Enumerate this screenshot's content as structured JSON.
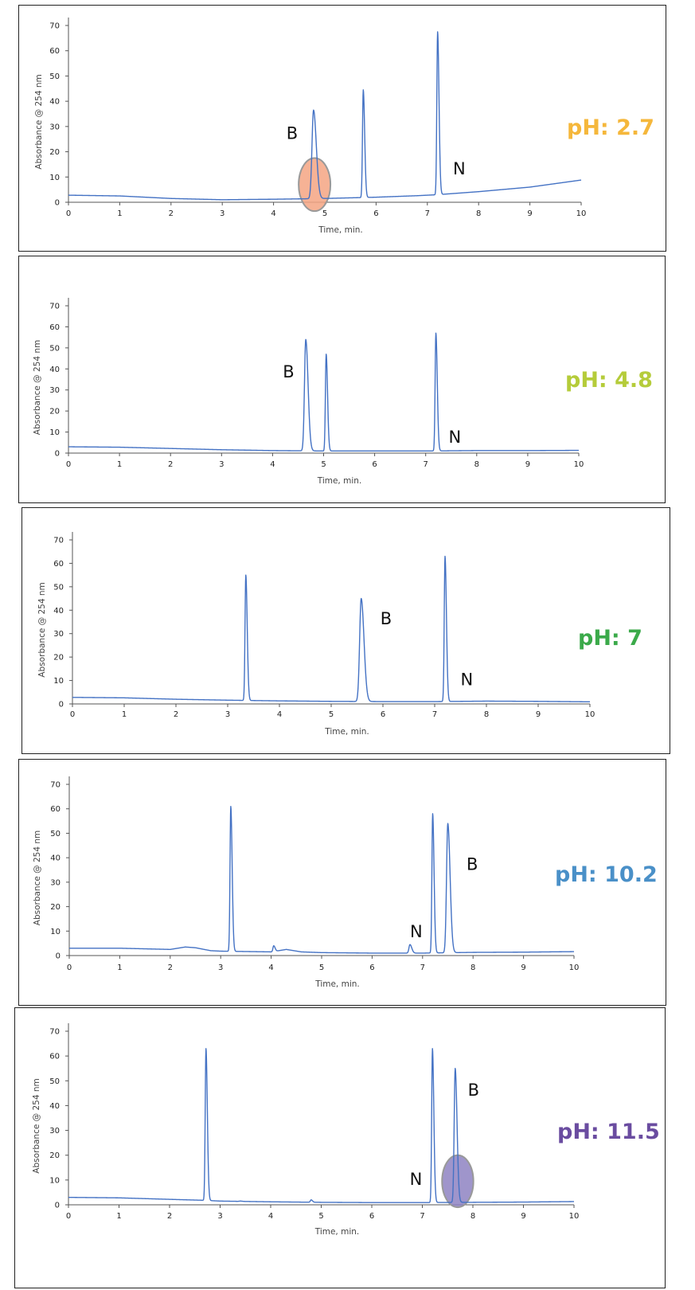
{
  "chart_data": [
    {
      "type": "line",
      "phLabel": "pH: 2.7",
      "phColor": "#F5B73B",
      "xlabel": "Time, min.",
      "ylabel": "Absorbance @ 254 nm",
      "xlim": [
        0,
        10
      ],
      "ylim": [
        0,
        70
      ],
      "xticks": [
        0,
        1,
        2,
        3,
        4,
        5,
        6,
        7,
        8,
        9,
        10
      ],
      "yticks": [
        0,
        10,
        20,
        30,
        40,
        50,
        60,
        70
      ],
      "lineColor": "#4472C4",
      "baseline": [
        [
          0,
          2.8
        ],
        [
          1,
          2.5
        ],
        [
          2,
          1.5
        ],
        [
          3,
          1.0
        ],
        [
          4,
          1.2
        ],
        [
          4.7,
          1.4
        ],
        [
          5,
          1.5
        ],
        [
          6,
          2.0
        ],
        [
          6.8,
          2.6
        ],
        [
          7.2,
          3.0
        ],
        [
          8,
          4.2
        ],
        [
          9,
          6.0
        ],
        [
          10,
          8.8
        ]
      ],
      "peaks": [
        [
          4.78,
          36.5,
          0.03
        ],
        [
          5.75,
          44.5,
          0.015
        ],
        [
          7.2,
          67.5,
          0.015
        ]
      ],
      "annotations": [
        {
          "text": "B",
          "x": 4.25,
          "y": 25
        },
        {
          "text": "N",
          "x": 7.5,
          "y": 11
        }
      ],
      "highlight": {
        "x": 4.8,
        "y": 7,
        "rx": 0.31,
        "ry": 10.5,
        "fill": "#F4A582",
        "stroke": "#999999"
      }
    },
    {
      "type": "line",
      "phLabel": "pH: 4.8",
      "phColor": "#B5CC3A",
      "xlabel": "Time, min.",
      "ylabel": "Absorbance @ 254 nm",
      "xlim": [
        0,
        10
      ],
      "ylim": [
        0,
        70
      ],
      "xticks": [
        0,
        1,
        2,
        3,
        4,
        5,
        6,
        7,
        8,
        9,
        10
      ],
      "yticks": [
        0,
        10,
        20,
        30,
        40,
        50,
        60,
        70
      ],
      "lineColor": "#4472C4",
      "baseline": [
        [
          0,
          3.0
        ],
        [
          1,
          2.8
        ],
        [
          2,
          2.2
        ],
        [
          3,
          1.6
        ],
        [
          4,
          1.2
        ],
        [
          5,
          1.0
        ],
        [
          6,
          1.0
        ],
        [
          7,
          1.0
        ],
        [
          8,
          1.2
        ],
        [
          9,
          1.2
        ],
        [
          10,
          1.3
        ]
      ],
      "peaks": [
        [
          4.65,
          54,
          0.025
        ],
        [
          5.05,
          47,
          0.015
        ],
        [
          7.2,
          57,
          0.015
        ]
      ],
      "annotations": [
        {
          "text": "B",
          "x": 4.2,
          "y": 36
        },
        {
          "text": "N",
          "x": 7.45,
          "y": 5
        }
      ],
      "highlight": null
    },
    {
      "type": "line",
      "phLabel": "pH: 7",
      "phColor": "#3BAA4A",
      "xlabel": "Time, min.",
      "ylabel": "Absorbance @ 254 nm",
      "xlim": [
        0,
        10
      ],
      "ylim": [
        0,
        70
      ],
      "xticks": [
        0,
        1,
        2,
        3,
        4,
        5,
        6,
        7,
        8,
        9,
        10
      ],
      "yticks": [
        0,
        10,
        20,
        30,
        40,
        50,
        60,
        70
      ],
      "lineColor": "#4472C4",
      "baseline": [
        [
          0,
          2.8
        ],
        [
          1,
          2.6
        ],
        [
          2,
          2.0
        ],
        [
          3,
          1.6
        ],
        [
          4,
          1.3
        ],
        [
          5,
          1.1
        ],
        [
          6,
          1.0
        ],
        [
          7,
          1.0
        ],
        [
          8,
          1.2
        ],
        [
          9,
          1.1
        ],
        [
          10,
          0.9
        ]
      ],
      "peaks": [
        [
          3.35,
          55,
          0.015
        ],
        [
          5.58,
          45,
          0.03
        ],
        [
          7.2,
          63,
          0.015
        ]
      ],
      "annotations": [
        {
          "text": "B",
          "x": 5.95,
          "y": 34
        },
        {
          "text": "N",
          "x": 7.5,
          "y": 8
        }
      ],
      "highlight": null
    },
    {
      "type": "line",
      "phLabel": "pH: 10.2",
      "phColor": "#4A90C8",
      "xlabel": "Time, min.",
      "ylabel": "Absorbance @ 254 nm",
      "xlim": [
        0,
        10
      ],
      "ylim": [
        0,
        70
      ],
      "xticks": [
        0,
        1,
        2,
        3,
        4,
        5,
        6,
        7,
        8,
        9,
        10
      ],
      "yticks": [
        0,
        10,
        20,
        30,
        40,
        50,
        60,
        70
      ],
      "lineColor": "#4472C4",
      "baseline": [
        [
          0,
          3.0
        ],
        [
          1,
          3.0
        ],
        [
          2,
          2.5
        ],
        [
          2.3,
          3.5
        ],
        [
          2.5,
          3.2
        ],
        [
          2.8,
          2.0
        ],
        [
          3,
          1.8
        ],
        [
          4,
          1.5
        ],
        [
          4.3,
          2.5
        ],
        [
          4.6,
          1.5
        ],
        [
          5,
          1.2
        ],
        [
          6,
          1.0
        ],
        [
          7,
          1.0
        ],
        [
          8,
          1.3
        ],
        [
          9,
          1.4
        ],
        [
          10,
          1.6
        ]
      ],
      "peaks": [
        [
          3.2,
          61,
          0.015
        ],
        [
          4.05,
          4,
          0.015
        ],
        [
          6.75,
          4.5,
          0.02
        ],
        [
          7.2,
          58,
          0.015
        ],
        [
          7.5,
          54,
          0.025
        ]
      ],
      "annotations": [
        {
          "text": "B",
          "x": 7.87,
          "y": 35
        },
        {
          "text": "N",
          "x": 6.75,
          "y": 7.5
        }
      ],
      "highlight": null
    },
    {
      "type": "line",
      "phLabel": "pH: 11.5",
      "phColor": "#6A4CA0",
      "xlabel": "Time, min.",
      "ylabel": "Absorbance @ 254 nm",
      "xlim": [
        0,
        10
      ],
      "ylim": [
        0,
        70
      ],
      "xticks": [
        0,
        1,
        2,
        3,
        4,
        5,
        6,
        7,
        8,
        9,
        10
      ],
      "yticks": [
        0,
        10,
        20,
        30,
        40,
        50,
        60,
        70
      ],
      "lineColor": "#4472C4",
      "baseline": [
        [
          0,
          3.0
        ],
        [
          1,
          2.8
        ],
        [
          2,
          2.2
        ],
        [
          2.7,
          1.8
        ],
        [
          3,
          1.5
        ],
        [
          4,
          1.2
        ],
        [
          5,
          1.0
        ],
        [
          6,
          0.9
        ],
        [
          7,
          0.9
        ],
        [
          8,
          1.0
        ],
        [
          9,
          1.1
        ],
        [
          10,
          1.3
        ]
      ],
      "peaks": [
        [
          2.72,
          63,
          0.015
        ],
        [
          3.4,
          1.5,
          0.02
        ],
        [
          4.8,
          2,
          0.015
        ],
        [
          7.2,
          63,
          0.015
        ],
        [
          7.65,
          55,
          0.02
        ]
      ],
      "annotations": [
        {
          "text": "B",
          "x": 7.9,
          "y": 44
        },
        {
          "text": "N",
          "x": 6.75,
          "y": 8
        }
      ],
      "highlight": {
        "x": 7.7,
        "y": 9.5,
        "rx": 0.31,
        "ry": 10.5,
        "fill": "#8E82C2",
        "stroke": "#999999"
      }
    }
  ]
}
